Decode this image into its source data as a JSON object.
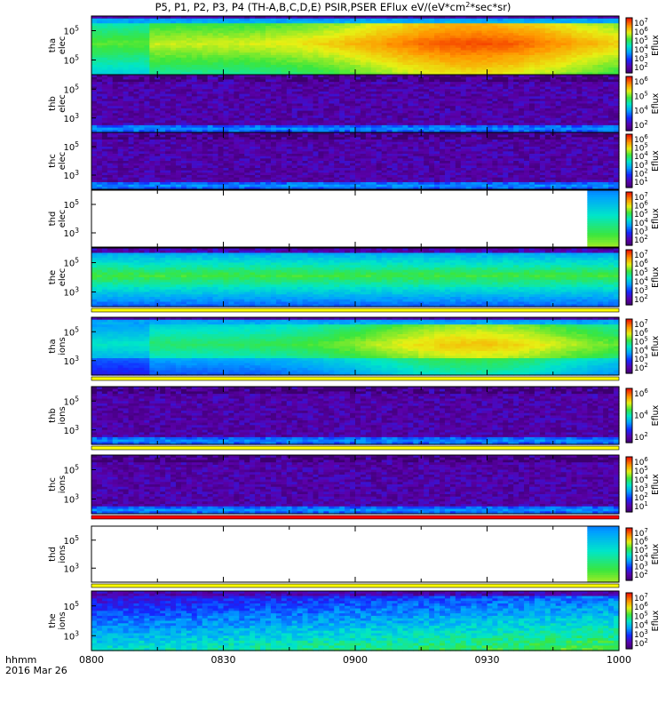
{
  "chart_data": {
    "type": "heatmap",
    "title": "P5, P1, P2, P3, P4 (TH-A,B,C,D,E) PSIR,PSER EFlux eV/(eV*cm",
    "title_sup": "2",
    "title_tail": "*sec*sr)",
    "colorbar_label": "Eflux",
    "xaxis": {
      "ticks": [
        "0800",
        "0830",
        "0900",
        "0930",
        "1000"
      ],
      "units_label": "hhmm",
      "date_label": "2016 Mar 26"
    },
    "panels": [
      {
        "name": "tha elec",
        "line1": "tha",
        "line2": "elec",
        "y_ticks": [
          "10",
          "10"
        ],
        "y_exp": [
          "5",
          "5"
        ],
        "cbar_ticks": [
          "10",
          "10",
          "10",
          "10",
          "10",
          "10"
        ],
        "cbar_exp": [
          "7",
          "6",
          "5",
          "4",
          "3",
          "2"
        ],
        "pattern": "hot",
        "has_data": true
      },
      {
        "name": "thb elec",
        "line1": "thb",
        "line2": "elec",
        "y_ticks": [
          "10",
          "10"
        ],
        "y_exp": [
          "5",
          "3"
        ],
        "cbar_ticks": [
          "10",
          "10",
          "10",
          "10"
        ],
        "cbar_exp": [
          "6",
          "5",
          "4",
          "2"
        ],
        "pattern": "noise",
        "has_data": true
      },
      {
        "name": "thc elec",
        "line1": "thc",
        "line2": "elec",
        "y_ticks": [
          "10",
          "10"
        ],
        "y_exp": [
          "5",
          "3"
        ],
        "cbar_ticks": [
          "10",
          "10",
          "10",
          "10",
          "10",
          "10"
        ],
        "cbar_exp": [
          "6",
          "5",
          "4",
          "3",
          "2",
          "1"
        ],
        "pattern": "noise",
        "has_data": true
      },
      {
        "name": "thd elec",
        "line1": "thd",
        "line2": "elec",
        "y_ticks": [
          "10",
          "10"
        ],
        "y_exp": [
          "5",
          "3"
        ],
        "cbar_ticks": [
          "10",
          "10",
          "10",
          "10",
          "10",
          "10"
        ],
        "cbar_exp": [
          "7",
          "6",
          "5",
          "4",
          "3",
          "2"
        ],
        "pattern": "edge",
        "has_data": false
      },
      {
        "name": "the elec",
        "line1": "the",
        "line2": "elec",
        "y_ticks": [
          "10",
          "10"
        ],
        "y_exp": [
          "5",
          "3"
        ],
        "cbar_ticks": [
          "10",
          "10",
          "10",
          "10",
          "10",
          "10"
        ],
        "cbar_exp": [
          "7",
          "6",
          "5",
          "4",
          "3",
          "2"
        ],
        "pattern": "cool",
        "has_data": true
      },
      {
        "name": "tha ions",
        "line1": "tha",
        "line2": "ions",
        "y_ticks": [
          "10",
          "10"
        ],
        "y_exp": [
          "5",
          "3"
        ],
        "cbar_ticks": [
          "10",
          "10",
          "10",
          "10",
          "10",
          "10"
        ],
        "cbar_exp": [
          "7",
          "6",
          "5",
          "4",
          "3",
          "2"
        ],
        "pattern": "warm",
        "has_data": true
      },
      {
        "name": "thb ions",
        "line1": "thb",
        "line2": "ions",
        "y_ticks": [
          "10",
          "10"
        ],
        "y_exp": [
          "5",
          "3"
        ],
        "cbar_ticks": [
          "10",
          "10",
          "10"
        ],
        "cbar_exp": [
          "6",
          "4",
          "2"
        ],
        "pattern": "noise",
        "has_data": true
      },
      {
        "name": "thc ions",
        "line1": "thc",
        "line2": "ions",
        "y_ticks": [
          "10",
          "10"
        ],
        "y_exp": [
          "5",
          "3"
        ],
        "cbar_ticks": [
          "10",
          "10",
          "10",
          "10",
          "10",
          "10"
        ],
        "cbar_exp": [
          "6",
          "5",
          "4",
          "3",
          "2",
          "1"
        ],
        "pattern": "noise",
        "has_data": true
      },
      {
        "name": "thd ions",
        "line1": "thd",
        "line2": "ions",
        "y_ticks": [
          "10",
          "10"
        ],
        "y_exp": [
          "5",
          "3"
        ],
        "cbar_ticks": [
          "10",
          "10",
          "10",
          "10",
          "10",
          "10"
        ],
        "cbar_exp": [
          "7",
          "6",
          "5",
          "4",
          "3",
          "2"
        ],
        "pattern": "edge",
        "has_data": false
      },
      {
        "name": "the ions",
        "line1": "the",
        "line2": "ions",
        "y_ticks": [
          "10",
          "10"
        ],
        "y_exp": [
          "5",
          "3"
        ],
        "cbar_ticks": [
          "10",
          "10",
          "10",
          "10",
          "10",
          "10"
        ],
        "cbar_exp": [
          "7",
          "6",
          "5",
          "4",
          "3",
          "2"
        ],
        "pattern": "cool2",
        "has_data": true
      }
    ],
    "separator_bars": [
      {
        "after": "the elec",
        "color": "#ffff00"
      },
      {
        "after": "tha ions",
        "color": "#ffff00"
      },
      {
        "after": "thb ions",
        "color": "#ffff00"
      },
      {
        "after": "thc ions",
        "color": "#ff0000"
      },
      {
        "after": "thd ions",
        "color": "#ffff00"
      }
    ]
  }
}
